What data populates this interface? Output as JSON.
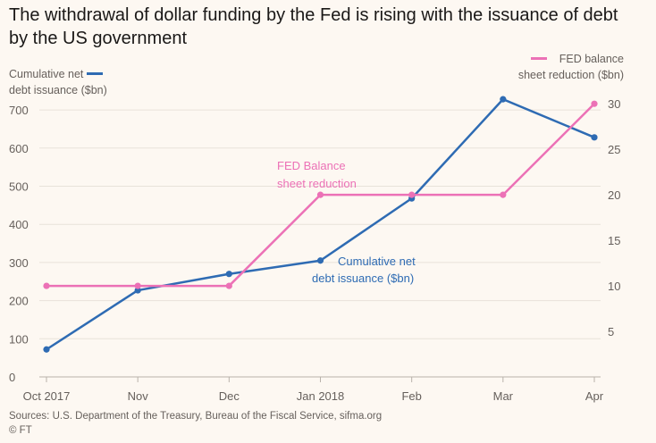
{
  "colors": {
    "debt": "#2e6bb3",
    "fed": "#ec71b6",
    "grid": "#e8e2da",
    "axis": "#66605c"
  },
  "chart_data": {
    "type": "line",
    "title": "The withdrawal of dollar funding by the Fed is rising with the issuance of debt by the US government",
    "categories": [
      "Oct 2017",
      "Nov",
      "Dec",
      "Jan 2018",
      "Feb",
      "Mar",
      "Apr"
    ],
    "series": [
      {
        "name": "Cumulative net debt issuance ($bn)",
        "axis": "left",
        "values": [
          72,
          227,
          270,
          305,
          468,
          728,
          628
        ],
        "annotation": [
          "Cumulative net",
          "debt issuance ($bn)"
        ]
      },
      {
        "name": "FED balance sheet reduction ($bn)",
        "axis": "right",
        "values": [
          10,
          10,
          10,
          20,
          20,
          20,
          30
        ],
        "annotation": [
          "FED Balance",
          "sheet reduction"
        ]
      }
    ],
    "left_axis": {
      "label_line1": "Cumulative net",
      "label_line2": "debt issuance ($bn)",
      "ticks": [
        0,
        100,
        200,
        300,
        400,
        500,
        600,
        700
      ],
      "ylim": [
        0,
        740
      ]
    },
    "right_axis": {
      "label_line1": "FED balance",
      "label_line2": "sheet reduction ($bn)",
      "ticks": [
        5,
        10,
        15,
        20,
        25,
        30
      ],
      "ylim": [
        0,
        31
      ]
    },
    "grid": true,
    "source": "Sources: U.S. Department of the Treasury, Bureau of the Fiscal Service, sifma.org",
    "credit": "© FT"
  }
}
